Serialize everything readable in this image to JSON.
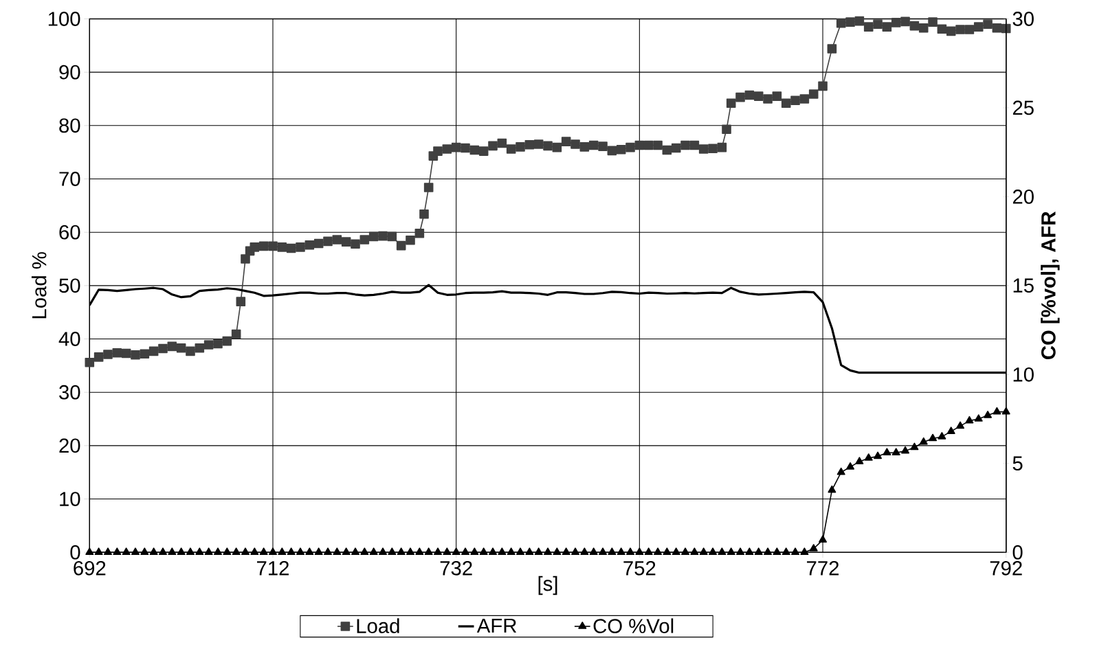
{
  "chart_data": {
    "type": "line",
    "xlabel": "[s]",
    "ylabel": "Load %",
    "y2label": "CO [%vol], AFR",
    "x": [
      692,
      693,
      694,
      695,
      696,
      697,
      698,
      699,
      700,
      701,
      702,
      703,
      704,
      705,
      706,
      707,
      708,
      709,
      710,
      711,
      712,
      713,
      714,
      715,
      716,
      717,
      718,
      719,
      720,
      721,
      722,
      723,
      724,
      725,
      726,
      727,
      728,
      729,
      730,
      731,
      732,
      733,
      734,
      735,
      736,
      737,
      738,
      739,
      740,
      741,
      742,
      743,
      744,
      745,
      746,
      747,
      748,
      749,
      750,
      751,
      752,
      753,
      754,
      755,
      756,
      757,
      758,
      759,
      760,
      761,
      762,
      763,
      764,
      765,
      766,
      767,
      768,
      769,
      770,
      771,
      772,
      773,
      774,
      775,
      776,
      777,
      778,
      779,
      780,
      781,
      782,
      783,
      784,
      785,
      786,
      787,
      788,
      789,
      790,
      791,
      792
    ],
    "xlim": [
      692,
      792
    ],
    "xticks": [
      692,
      712,
      732,
      752,
      772,
      792
    ],
    "ylim": [
      0,
      100
    ],
    "yticks": [
      0,
      10,
      20,
      30,
      40,
      50,
      60,
      70,
      80,
      90,
      100
    ],
    "y2lim": [
      0,
      30
    ],
    "y2ticks": [
      0,
      5,
      10,
      15,
      20,
      25,
      30
    ],
    "grid": true,
    "legend": "bottom",
    "series": [
      {
        "name": "Load",
        "color": "#404040",
        "marker": "square",
        "x": [
          692,
          693,
          694,
          695,
          696,
          697,
          698,
          699,
          700,
          701,
          702,
          703,
          704,
          705,
          706,
          707,
          708,
          708.5,
          709,
          709.5,
          710,
          711,
          712,
          713,
          714,
          715,
          716,
          717,
          718,
          719,
          720,
          721,
          722,
          723,
          724,
          725,
          726,
          727,
          728,
          728.5,
          729,
          729.5,
          730,
          731,
          732,
          733,
          734,
          735,
          736,
          737,
          738,
          739,
          740,
          741,
          742,
          743,
          744,
          745,
          746,
          747,
          748,
          749,
          750,
          751,
          752,
          753,
          754,
          755,
          756,
          757,
          758,
          759,
          760,
          761,
          761.5,
          762,
          763,
          764,
          765,
          766,
          767,
          768,
          769,
          770,
          771,
          772,
          773,
          774,
          775,
          776,
          777,
          778,
          779,
          780,
          781,
          782,
          783,
          784,
          785,
          786,
          787,
          788,
          789,
          790,
          791,
          792
        ],
        "values": [
          35.6,
          36.6,
          37.1,
          37.4,
          37.3,
          37.0,
          37.2,
          37.7,
          38.2,
          38.6,
          38.3,
          37.7,
          38.3,
          38.9,
          39.1,
          39.6,
          40.9,
          47.0,
          55.0,
          56.5,
          57.2,
          57.4,
          57.4,
          57.2,
          57.0,
          57.2,
          57.6,
          57.9,
          58.3,
          58.6,
          58.2,
          57.8,
          58.6,
          59.2,
          59.3,
          59.2,
          57.5,
          58.5,
          59.8,
          63.4,
          68.4,
          74.3,
          75.2,
          75.6,
          75.9,
          75.8,
          75.4,
          75.2,
          76.2,
          76.7,
          75.6,
          76.0,
          76.4,
          76.5,
          76.2,
          75.9,
          77.0,
          76.5,
          76.0,
          76.3,
          76.1,
          75.3,
          75.5,
          75.9,
          76.3,
          76.3,
          76.3,
          75.4,
          75.8,
          76.3,
          76.3,
          75.6,
          75.7,
          75.9,
          79.3,
          84.2,
          85.3,
          85.7,
          85.5,
          85.0,
          85.5,
          84.2,
          84.7,
          85.0,
          85.9,
          87.4,
          94.4,
          99.2,
          99.4,
          99.6,
          98.5,
          99.0,
          98.5,
          99.3,
          99.5,
          98.7,
          98.3,
          99.4,
          98.1,
          97.7,
          98.0,
          98.0,
          98.5,
          99.0,
          98.3,
          98.2
        ]
      },
      {
        "name": "AFR",
        "color": "#000000",
        "axis": "y2",
        "values": [
          13.9,
          14.77,
          14.75,
          14.7,
          14.75,
          14.8,
          14.83,
          14.87,
          14.8,
          14.5,
          14.35,
          14.4,
          14.7,
          14.75,
          14.78,
          14.85,
          14.8,
          14.7,
          14.6,
          14.42,
          14.45,
          14.5,
          14.55,
          14.6,
          14.6,
          14.55,
          14.55,
          14.58,
          14.58,
          14.5,
          14.45,
          14.48,
          14.55,
          14.65,
          14.6,
          14.6,
          14.65,
          15.03,
          14.6,
          14.48,
          14.5,
          14.58,
          14.6,
          14.6,
          14.62,
          14.68,
          14.6,
          14.6,
          14.58,
          14.55,
          14.48,
          14.62,
          14.62,
          14.58,
          14.53,
          14.53,
          14.58,
          14.65,
          14.63,
          14.58,
          14.55,
          14.6,
          14.58,
          14.55,
          14.56,
          14.58,
          14.56,
          14.58,
          14.6,
          14.58,
          14.87,
          14.65,
          14.55,
          14.5,
          14.52,
          14.55,
          14.58,
          14.62,
          14.65,
          14.62,
          14.07,
          12.6,
          10.53,
          10.23,
          10.1,
          10.1,
          10.1,
          10.1,
          10.1,
          10.1,
          10.1,
          10.1,
          10.1,
          10.1,
          10.1,
          10.1,
          10.1,
          10.1,
          10.1,
          10.1,
          10.1
        ]
      },
      {
        "name": "CO %Vol",
        "color": "#000000",
        "axis": "y2",
        "marker": "triangle",
        "values": [
          0,
          0,
          0,
          0,
          0,
          0,
          0,
          0,
          0,
          0,
          0,
          0,
          0,
          0,
          0,
          0,
          0,
          0,
          0,
          0,
          0,
          0,
          0,
          0,
          0,
          0,
          0,
          0,
          0,
          0,
          0,
          0,
          0,
          0,
          0,
          0,
          0,
          0,
          0,
          0,
          0,
          0,
          0,
          0,
          0,
          0,
          0,
          0,
          0,
          0,
          0,
          0,
          0,
          0,
          0,
          0,
          0,
          0,
          0,
          0,
          0,
          0,
          0,
          0,
          0,
          0,
          0,
          0,
          0,
          0,
          0,
          0,
          0,
          0,
          0,
          0,
          0,
          0,
          0,
          0.2,
          0.7,
          3.5,
          4.5,
          4.8,
          5.1,
          5.3,
          5.4,
          5.6,
          5.6,
          5.7,
          5.9,
          6.2,
          6.4,
          6.5,
          6.8,
          7.1,
          7.4,
          7.5,
          7.7,
          7.9,
          7.9
        ]
      }
    ]
  }
}
